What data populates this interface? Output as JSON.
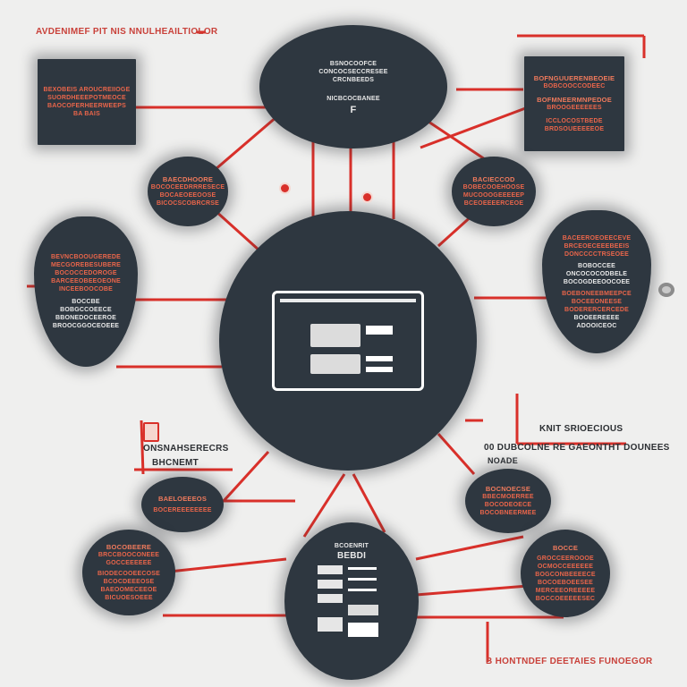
{
  "top_label": "AVDENIMEF PIT NIS NNULHEAILTIOLOR",
  "top_blob": {
    "lines": [
      "BSNOCOOFCE",
      "CONCOCSECCRESEE",
      "CRCNBEEDS"
    ],
    "sub": "NICBCOCBANEE",
    "mark": "F"
  },
  "box_top_left": {
    "lines": [
      "BEXOBEIS AROUCREIIOGE",
      "SUORDHEEEPOTMEOCE",
      "BAOCOFERHEERWEEPS",
      "BA BAIS"
    ]
  },
  "box_top_right": {
    "lines": [
      "BOFNGUUERENBEOEIE",
      "BOBCOOCCODEEC",
      "BOFMNEERMNPEDOE",
      "BROOGEEEEEES",
      "ICCLOCOSTBEDE",
      "BRDSOUEEEEEOE"
    ]
  },
  "blob_left_upper": {
    "lines": [
      "BAECDHOORE",
      "BOCOCEEDRRRESECE",
      "BOCAEOEEOOSE",
      "BICOCSCOBRCRSE"
    ]
  },
  "blob_right_upper": {
    "lines": [
      "BACIECCOD",
      "BOBECOOEHOOSE",
      "MUCOOOGEEEEEP",
      "BCEOEEEERCEOE"
    ]
  },
  "shield_left": {
    "lines": [
      "BEVNCBOOUGEREDE",
      "MECGOREBESUBERE",
      "BOCOCCEDOROGE",
      "BARCEEOBEEOEONE",
      "INCEEBOOCOBE",
      "BOCCBE",
      "BOBGCCOEECE",
      "BBONEDOCEEROE",
      "BROOCGGOCEOEEE"
    ]
  },
  "shield_right": {
    "lines": [
      "BACEEROEOEECEVE",
      "BRCEOECEEEBEEIS",
      "DONCCCCTRSEOEE",
      "BOBOCCEE",
      "ONCOCOCODBELE",
      "BOCOGDEEOOCOEE",
      "BOEBONEEBMEEPCE",
      "BOCEEONEESE",
      "BODERERCERCEDE",
      "BOOEEREEEE",
      "ADOOICEOC"
    ]
  },
  "label_left_mid": {
    "line1": "ONSNAHSERECRS",
    "line2": "BHCNEMT"
  },
  "label_right_mid": "KNIT SRIOECIOUS",
  "label_right_mid2": "00 DUBCOLNE RE GAEONTHT DOUNEES",
  "label_right_mid3": "NOADE",
  "blob_bottom_left": {
    "lines": [
      "BAELOEEEOS",
      "BOCEREEEEEEEE"
    ]
  },
  "blob_bottom_left2": {
    "lines": [
      "BOCOBEERE",
      "BRCCBOOCONEEE",
      "GOCCEEEEEE",
      "BIODECOOEECOSE",
      "BCOCDEEEOSE",
      "BAEOOMECEEOE",
      "BICUOESOEEE"
    ]
  },
  "blob_bottom_right": {
    "lines": [
      "BOCNOECSE",
      "BBECMOERREE",
      "BOCODEOECE",
      "BOCOBNEERMEE"
    ]
  },
  "blob_bottom_right2": {
    "lines": [
      "BOCCE",
      "GROCCEEROOOE",
      "OCMOCCEEEEEE",
      "BOGCONBEEEECE",
      "BOCOEBOEESEE",
      "MERCEEOREEEEE",
      "BOCCOEEEEESEC"
    ]
  },
  "bottom_blob": {
    "title1": "BCOENRIT",
    "title2": "BEBDI"
  },
  "bottom_label": "B HONTNDEF DEETAIES FUNOEGOR",
  "colors": {
    "node": "#2e3740",
    "accent": "#d9302a",
    "text_accent": "#e9654a",
    "bg": "#efefee"
  }
}
